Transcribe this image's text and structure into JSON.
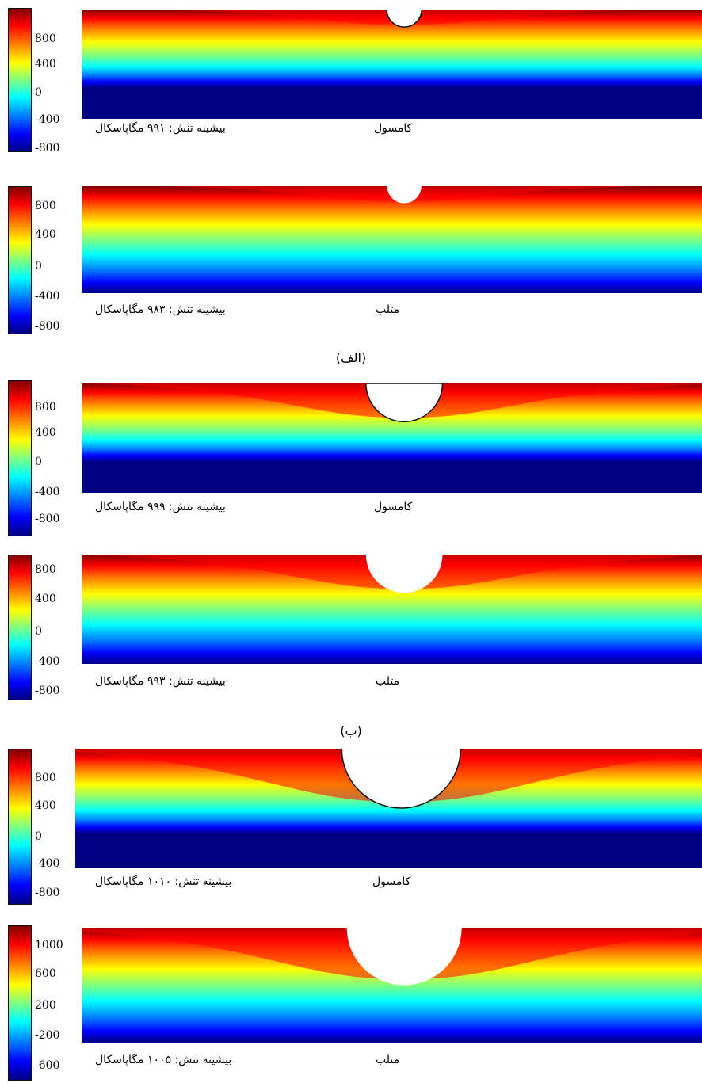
{
  "figure": {
    "captions": [
      "(الف)",
      "(ب)"
    ],
    "colormap": [
      "#800000",
      "#ff0000",
      "#ff8000",
      "#ffff00",
      "#80ff80",
      "#00ffff",
      "#0080ff",
      "#0000ff",
      "#000080"
    ],
    "panels": [
      {
        "method": "کامسول",
        "max_stress": "بیشینه تنش: ۹۹۱ مگاپاسکال",
        "ticks": [
          "800",
          "400",
          "0",
          "-400",
          "-800"
        ],
        "notch_depth": 0.16,
        "style": "comsol"
      },
      {
        "method": "متلب",
        "max_stress": "بیشینه تنش: ۹۸۳ مگاپاسکال",
        "ticks": [
          "800",
          "400",
          "0",
          "-400",
          "-800"
        ],
        "notch_depth": 0.16,
        "style": "matlab"
      },
      {
        "method": "کامسول",
        "max_stress": "بیشینه تنش: ۹۹۹ مگاپاسکال",
        "ticks": [
          "800",
          "400",
          "0",
          "-400",
          "-800"
        ],
        "notch_depth": 0.35,
        "style": "comsol"
      },
      {
        "method": "متلب",
        "max_stress": "بیشینه تنش: ۹۹۳ مگاپاسکال",
        "ticks": [
          "800",
          "400",
          "0",
          "-400",
          "-800"
        ],
        "notch_depth": 0.35,
        "style": "matlab"
      },
      {
        "method": "کامسول",
        "max_stress": "بیشینه تنش: ۱۰۱۰ مگاپاسکال",
        "ticks": [
          "800",
          "400",
          "0",
          "-400",
          "-800"
        ],
        "notch_depth": 0.5,
        "style": "comsol"
      },
      {
        "method": "متلب",
        "max_stress": "بیشینه تنش: ۱۰۰۵ مگاپاسکال",
        "ticks": [
          "1000",
          "600",
          "200",
          "-200",
          "-600"
        ],
        "notch_depth": 0.5,
        "style": "matlab"
      }
    ]
  }
}
